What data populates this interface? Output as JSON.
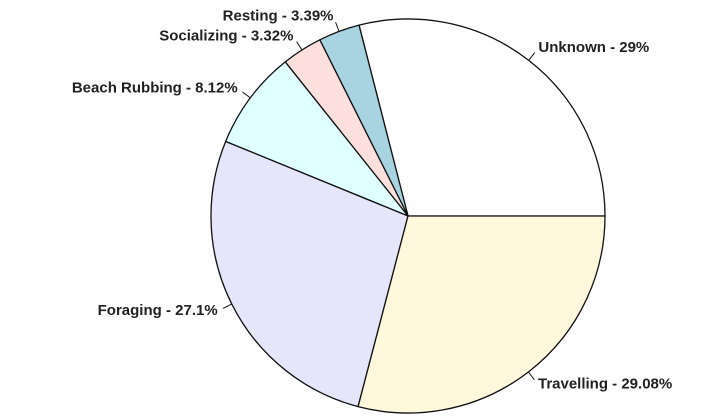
{
  "chart_data": {
    "type": "pie",
    "values": [
      29,
      3.39,
      3.32,
      8.12,
      27.1,
      29.08
    ],
    "value_labels": [
      "Unknown - 29%",
      "Resting - 3.39%",
      "Socializing - 3.32%",
      "Beach Rubbing - 8.12%",
      "Foraging - 27.1%",
      "Travelling - 29.08%"
    ],
    "colors": [
      "#ffffff",
      "#a8d4e2",
      "#fde0de",
      "#e0ffff",
      "#e6e6fa",
      "#fff8dc"
    ]
  }
}
